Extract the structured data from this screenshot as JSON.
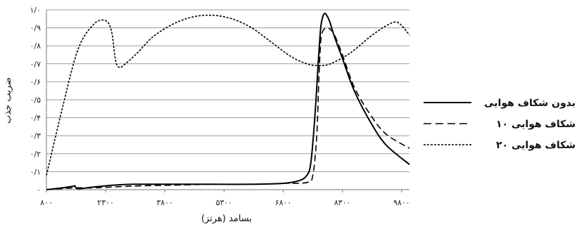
{
  "chart_data": {
    "type": "line",
    "xlabel": "بسامد (هرتز)",
    "ylabel": "ضریب جذب",
    "xlim": [
      800,
      10000
    ],
    "ylim": [
      0,
      1
    ],
    "grid": true,
    "legend_position": "right",
    "x_ticks": [
      {
        "value": 800,
        "label": "۸۰۰"
      },
      {
        "value": 2300,
        "label": "۲۳۰۰"
      },
      {
        "value": 3800,
        "label": "۳۸۰۰"
      },
      {
        "value": 5300,
        "label": "۵۳۰۰"
      },
      {
        "value": 6800,
        "label": "۶۸۰۰"
      },
      {
        "value": 8300,
        "label": "۸۳۰۰"
      },
      {
        "value": 9800,
        "label": "۹۸۰۰"
      }
    ],
    "y_ticks": [
      {
        "value": 0,
        "label": "۰"
      },
      {
        "value": 0.1,
        "label": "۰/۱"
      },
      {
        "value": 0.2,
        "label": "۰/۲"
      },
      {
        "value": 0.3,
        "label": "۰/۳"
      },
      {
        "value": 0.4,
        "label": "۰/۴"
      },
      {
        "value": 0.5,
        "label": "۰/۵"
      },
      {
        "value": 0.6,
        "label": "۰/۶"
      },
      {
        "value": 0.7,
        "label": "۰/۷"
      },
      {
        "value": 0.8,
        "label": "۰/۸"
      },
      {
        "value": 0.9,
        "label": "۰/۹"
      },
      {
        "value": 1,
        "label": "۱/۰"
      }
    ],
    "series": [
      {
        "name": "بدون شکاف هوایی",
        "style": "solid",
        "color": "#000000",
        "x": [
          800,
          1200,
          1500,
          1520,
          1600,
          2000,
          2500,
          3000,
          4000,
          5000,
          6000,
          6800,
          7200,
          7400,
          7500,
          7600,
          7700,
          7750,
          7800,
          7850,
          7900,
          7950,
          8000,
          8100,
          8300,
          8600,
          9000,
          9400,
          10000
        ],
        "y": [
          0,
          0.01,
          0.02,
          0.02,
          0.005,
          0.015,
          0.025,
          0.03,
          0.03,
          0.03,
          0.03,
          0.035,
          0.05,
          0.08,
          0.15,
          0.4,
          0.75,
          0.9,
          0.96,
          0.98,
          0.97,
          0.95,
          0.92,
          0.85,
          0.73,
          0.55,
          0.38,
          0.25,
          0.14
        ]
      },
      {
        "name": "شکاف هوایی ۱۰",
        "style": "dashed",
        "color": "#000000",
        "x": [
          800,
          1500,
          2000,
          3000,
          4000,
          5000,
          6000,
          6800,
          7400,
          7550,
          7650,
          7700,
          7750,
          7800,
          7900,
          8000,
          8100,
          8300,
          8600,
          9000,
          9400,
          10000
        ],
        "y": [
          0,
          0.01,
          0.01,
          0.02,
          0.025,
          0.03,
          0.03,
          0.035,
          0.04,
          0.08,
          0.3,
          0.6,
          0.82,
          0.88,
          0.9,
          0.89,
          0.86,
          0.75,
          0.57,
          0.42,
          0.31,
          0.23
        ]
      },
      {
        "name": "شکاف هوایی ۲۰",
        "style": "dotted",
        "color": "#000000",
        "x": [
          800,
          1200,
          1600,
          2000,
          2300,
          2450,
          2550,
          2650,
          2800,
          3100,
          3500,
          4000,
          4500,
          5000,
          5500,
          6000,
          6500,
          7000,
          7400,
          7700,
          8000,
          8500,
          9000,
          9400,
          9700,
          10000
        ],
        "y": [
          0.08,
          0.45,
          0.78,
          0.92,
          0.94,
          0.88,
          0.72,
          0.68,
          0.7,
          0.76,
          0.85,
          0.92,
          0.96,
          0.97,
          0.95,
          0.9,
          0.82,
          0.74,
          0.7,
          0.69,
          0.7,
          0.76,
          0.85,
          0.91,
          0.93,
          0.86
        ]
      }
    ]
  }
}
